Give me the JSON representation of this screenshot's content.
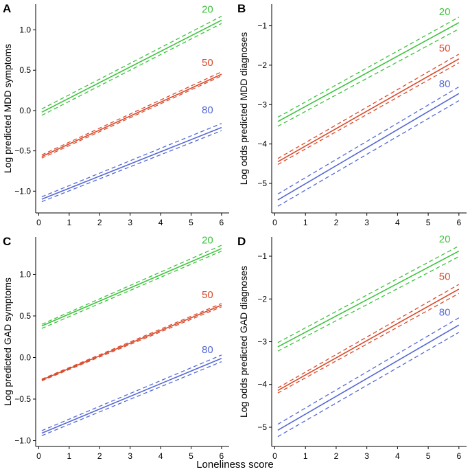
{
  "figure": {
    "shared_xlabel": "Loneliness score"
  },
  "chart_data": [
    {
      "id": "A",
      "panel_label": "A",
      "type": "line",
      "ylabel": "Log predicted MDD symptoms",
      "xlim": [
        -0.1,
        6.25
      ],
      "ylim": [
        -1.27,
        1.32
      ],
      "xticks": [
        0,
        1,
        2,
        3,
        4,
        5,
        6
      ],
      "yticks": [
        -1.0,
        -0.5,
        0.0,
        0.5,
        1.0
      ],
      "ytick_labels": [
        "−1.0",
        "−0.5",
        "0.0",
        "0.5",
        "1.0"
      ],
      "series": [
        {
          "name": "20",
          "color": "#3dc23d",
          "x": [
            0.1,
            6.0
          ],
          "y": [
            -0.02,
            1.12
          ],
          "ci_lower": [
            -0.06,
            1.08
          ],
          "ci_upper": [
            0.02,
            1.17
          ]
        },
        {
          "name": "50",
          "color": "#d94a2b",
          "x": [
            0.1,
            6.0
          ],
          "y": [
            -0.57,
            0.45
          ],
          "ci_lower": [
            -0.59,
            0.43
          ],
          "ci_upper": [
            -0.55,
            0.48
          ]
        },
        {
          "name": "80",
          "color": "#5468d4",
          "x": [
            0.1,
            6.0
          ],
          "y": [
            -1.1,
            -0.21
          ],
          "ci_lower": [
            -1.13,
            -0.25
          ],
          "ci_upper": [
            -1.07,
            -0.16
          ]
        }
      ],
      "labels": [
        {
          "text": "20",
          "series": 0,
          "x": 5.35,
          "y": 1.18
        },
        {
          "text": "50",
          "series": 1,
          "x": 5.35,
          "y": 0.52
        },
        {
          "text": "80",
          "series": 2,
          "x": 5.35,
          "y": -0.07
        }
      ]
    },
    {
      "id": "B",
      "panel_label": "B",
      "type": "line",
      "ylabel": "Log odds predicted MDD diagnoses",
      "xlim": [
        -0.1,
        6.25
      ],
      "ylim": [
        -5.75,
        -0.45
      ],
      "xticks": [
        0,
        1,
        2,
        3,
        4,
        5,
        6
      ],
      "yticks": [
        -5,
        -4,
        -3,
        -2,
        -1
      ],
      "ytick_labels": [
        "−5",
        "−4",
        "−3",
        "−2",
        "−1"
      ],
      "series": [
        {
          "name": "20",
          "color": "#3dc23d",
          "x": [
            0.1,
            6.0
          ],
          "y": [
            -3.43,
            -0.92
          ],
          "ci_lower": [
            -3.55,
            -1.08
          ],
          "ci_upper": [
            -3.32,
            -0.78
          ]
        },
        {
          "name": "50",
          "color": "#d94a2b",
          "x": [
            0.1,
            6.0
          ],
          "y": [
            -4.45,
            -1.84
          ],
          "ci_lower": [
            -4.52,
            -1.94
          ],
          "ci_upper": [
            -4.37,
            -1.72
          ]
        },
        {
          "name": "80",
          "color": "#5468d4",
          "x": [
            0.1,
            6.0
          ],
          "y": [
            -5.42,
            -2.72
          ],
          "ci_lower": [
            -5.58,
            -2.9
          ],
          "ci_upper": [
            -5.27,
            -2.55
          ]
        }
      ],
      "labels": [
        {
          "text": "20",
          "series": 0,
          "x": 5.35,
          "y": -0.8
        },
        {
          "text": "50",
          "series": 1,
          "x": 5.35,
          "y": -1.72
        },
        {
          "text": "80",
          "series": 2,
          "x": 5.35,
          "y": -2.63
        }
      ]
    },
    {
      "id": "C",
      "panel_label": "C",
      "type": "line",
      "ylabel": "Log predicted GAD symptoms",
      "xlim": [
        -0.1,
        6.25
      ],
      "ylim": [
        -1.07,
        1.45
      ],
      "xticks": [
        0,
        1,
        2,
        3,
        4,
        5,
        6
      ],
      "yticks": [
        -1.0,
        -0.5,
        0.0,
        0.5,
        1.0
      ],
      "ytick_labels": [
        "−1.0",
        "−0.5",
        "0.0",
        "0.5",
        "1.0"
      ],
      "series": [
        {
          "name": "20",
          "color": "#3dc23d",
          "x": [
            0.1,
            6.0
          ],
          "y": [
            0.38,
            1.31
          ],
          "ci_lower": [
            0.35,
            1.28
          ],
          "ci_upper": [
            0.4,
            1.35
          ]
        },
        {
          "name": "50",
          "color": "#d94a2b",
          "x": [
            0.1,
            6.0
          ],
          "y": [
            -0.27,
            0.63
          ],
          "ci_lower": [
            -0.28,
            0.61
          ],
          "ci_upper": [
            -0.26,
            0.65
          ]
        },
        {
          "name": "80",
          "color": "#5468d4",
          "x": [
            0.1,
            6.0
          ],
          "y": [
            -0.91,
            -0.01
          ],
          "ci_lower": [
            -0.94,
            -0.05
          ],
          "ci_upper": [
            -0.88,
            0.03
          ]
        }
      ],
      "labels": [
        {
          "text": "20",
          "series": 0,
          "x": 5.35,
          "y": 1.34
        },
        {
          "text": "50",
          "series": 1,
          "x": 5.35,
          "y": 0.68
        },
        {
          "text": "80",
          "series": 2,
          "x": 5.35,
          "y": 0.02
        }
      ]
    },
    {
      "id": "D",
      "panel_label": "D",
      "type": "line",
      "ylabel": "Log odds predicted GAD diagnoses",
      "xlim": [
        -0.1,
        6.25
      ],
      "ylim": [
        -5.45,
        -0.55
      ],
      "xticks": [
        0,
        1,
        2,
        3,
        4,
        5,
        6
      ],
      "yticks": [
        -5,
        -4,
        -3,
        -2,
        -1
      ],
      "ytick_labels": [
        "−5",
        "−4",
        "−3",
        "−2",
        "−1"
      ],
      "series": [
        {
          "name": "20",
          "color": "#3dc23d",
          "x": [
            0.1,
            6.0
          ],
          "y": [
            -3.12,
            -0.88
          ],
          "ci_lower": [
            -3.22,
            -1.01
          ],
          "ci_upper": [
            -3.02,
            -0.76
          ]
        },
        {
          "name": "50",
          "color": "#d94a2b",
          "x": [
            0.1,
            6.0
          ],
          "y": [
            -4.14,
            -1.77
          ],
          "ci_lower": [
            -4.2,
            -1.87
          ],
          "ci_upper": [
            -4.08,
            -1.66
          ]
        },
        {
          "name": "80",
          "color": "#5468d4",
          "x": [
            0.1,
            6.0
          ],
          "y": [
            -5.07,
            -2.61
          ],
          "ci_lower": [
            -5.22,
            -2.78
          ],
          "ci_upper": [
            -4.93,
            -2.44
          ]
        }
      ],
      "labels": [
        {
          "text": "20",
          "series": 0,
          "x": 5.35,
          "y": -0.74
        },
        {
          "text": "50",
          "series": 1,
          "x": 5.35,
          "y": -1.62
        },
        {
          "text": "80",
          "series": 2,
          "x": 5.35,
          "y": -2.45
        }
      ]
    }
  ]
}
